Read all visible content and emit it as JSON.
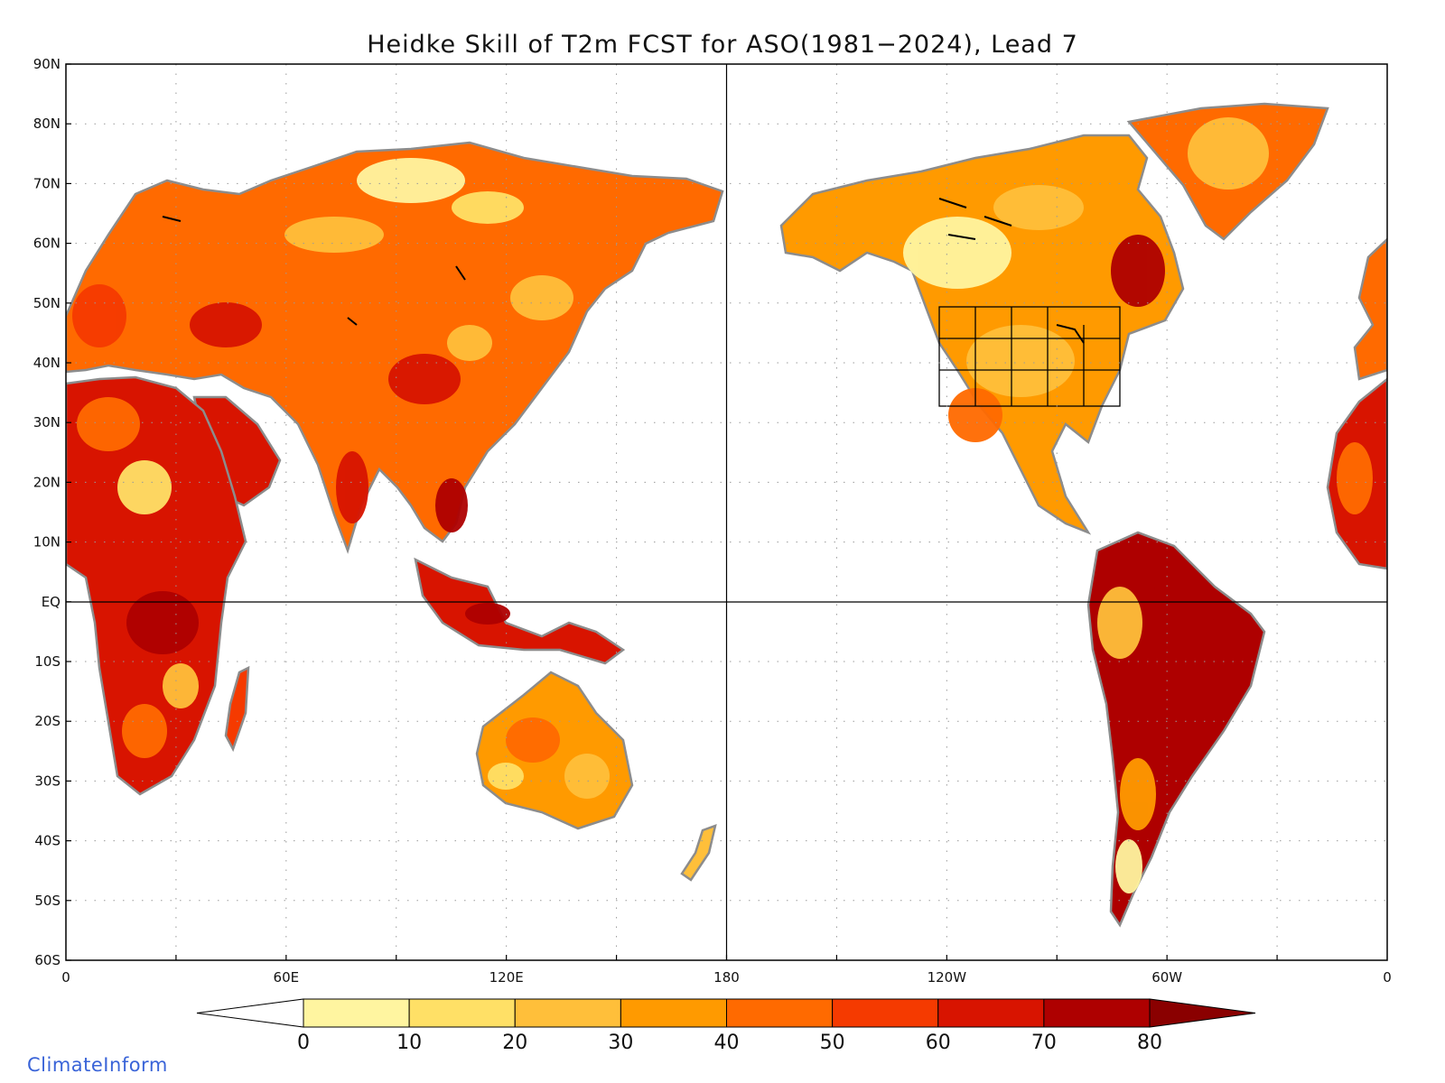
{
  "title": "Heidke Skill of T2m FCST for ASO(1981−2024), Lead 7",
  "watermark": "ClimateInform",
  "map": {
    "lat_ticks": [
      "90N",
      "80N",
      "70N",
      "60N",
      "50N",
      "40N",
      "30N",
      "20N",
      "10N",
      "EQ",
      "10S",
      "20S",
      "30S",
      "40S",
      "50S",
      "60S"
    ],
    "lon_ticks": [
      "0",
      "60E",
      "120E",
      "180",
      "120W",
      "60W",
      "0"
    ],
    "lat_range": [
      -60,
      90
    ],
    "lon_range": [
      0,
      360
    ],
    "grid": true,
    "land_outline_color": "#8c8c8c",
    "ocean_color": "#ffffff"
  },
  "colorbar": {
    "labels": [
      "0",
      "10",
      "20",
      "30",
      "40",
      "50",
      "60",
      "70",
      "80"
    ],
    "under_color": "#ffffff",
    "colors": [
      "#fff5a0",
      "#ffe066",
      "#ffbf3a",
      "#ff9a00",
      "#ff6a00",
      "#f53a00",
      "#d81400",
      "#ae0000"
    ],
    "over_color": "#8a0000"
  },
  "skill_colors": [
    "#fff5a0",
    "#ffe066",
    "#ffbf3a",
    "#ff9a00",
    "#ff6a00",
    "#f53a00",
    "#d81400",
    "#ae0000"
  ]
}
